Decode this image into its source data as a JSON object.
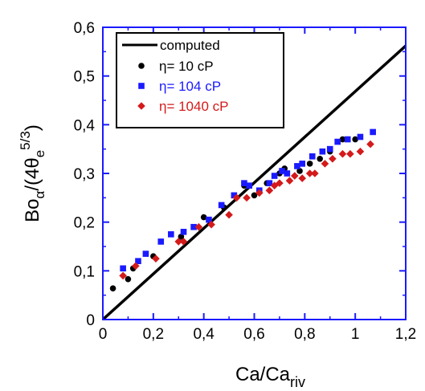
{
  "chart_data": {
    "type": "scatter",
    "xlim": [
      0,
      1.2
    ],
    "ylim": [
      0,
      0.6
    ],
    "x_ticks": [
      "0",
      "0,2",
      "0,4",
      "0,6",
      "0,8",
      "1",
      "1,2"
    ],
    "y_ticks": [
      "0",
      "0,1",
      "0,2",
      "0,3",
      "0,4",
      "0,5",
      "0,6"
    ],
    "xlabel": {
      "main": "Ca/Ca",
      "sub": "riv"
    },
    "ylabel": {
      "p1": "Bo",
      "p1sub": "α",
      "p2": "/(4θ",
      "p2sub": "e",
      "p2sup": "5/3",
      "p3": ")"
    },
    "frame_color": "#1a1aff",
    "legend_position": "top-left",
    "computed_line": {
      "name": "computed",
      "color": "#000000",
      "x": [
        0,
        1.2
      ],
      "y": [
        0,
        0.562
      ]
    },
    "series": [
      {
        "name": "η= 10 cP",
        "marker": "circle",
        "color": "#000000",
        "label_color": "#000000",
        "points": [
          [
            0.04,
            0.064
          ],
          [
            0.1,
            0.083
          ],
          [
            0.12,
            0.105
          ],
          [
            0.2,
            0.13
          ],
          [
            0.31,
            0.17
          ],
          [
            0.4,
            0.21
          ],
          [
            0.48,
            0.23
          ],
          [
            0.56,
            0.275
          ],
          [
            0.6,
            0.255
          ],
          [
            0.65,
            0.28
          ],
          [
            0.7,
            0.3
          ],
          [
            0.72,
            0.31
          ],
          [
            0.78,
            0.305
          ],
          [
            0.82,
            0.32
          ],
          [
            0.86,
            0.33
          ],
          [
            0.9,
            0.345
          ],
          [
            0.95,
            0.37
          ],
          [
            1.0,
            0.37
          ]
        ]
      },
      {
        "name": "η= 104 cP",
        "marker": "square",
        "color": "#1a1aff",
        "label_color": "#1a1aff",
        "points": [
          [
            0.08,
            0.105
          ],
          [
            0.14,
            0.12
          ],
          [
            0.17,
            0.135
          ],
          [
            0.23,
            0.16
          ],
          [
            0.27,
            0.175
          ],
          [
            0.32,
            0.18
          ],
          [
            0.36,
            0.19
          ],
          [
            0.42,
            0.205
          ],
          [
            0.47,
            0.235
          ],
          [
            0.52,
            0.255
          ],
          [
            0.56,
            0.28
          ],
          [
            0.58,
            0.275
          ],
          [
            0.62,
            0.265
          ],
          [
            0.66,
            0.28
          ],
          [
            0.68,
            0.295
          ],
          [
            0.71,
            0.305
          ],
          [
            0.73,
            0.3
          ],
          [
            0.77,
            0.315
          ],
          [
            0.79,
            0.32
          ],
          [
            0.83,
            0.335
          ],
          [
            0.87,
            0.345
          ],
          [
            0.9,
            0.35
          ],
          [
            0.93,
            0.365
          ],
          [
            0.97,
            0.37
          ],
          [
            1.02,
            0.375
          ],
          [
            1.07,
            0.385
          ]
        ]
      },
      {
        "name": "η= 1040 cP",
        "marker": "diamond",
        "color": "#d41a1a",
        "label_color": "#d41a1a",
        "points": [
          [
            0.08,
            0.09
          ],
          [
            0.13,
            0.11
          ],
          [
            0.21,
            0.125
          ],
          [
            0.3,
            0.16
          ],
          [
            0.32,
            0.16
          ],
          [
            0.38,
            0.19
          ],
          [
            0.43,
            0.195
          ],
          [
            0.5,
            0.215
          ],
          [
            0.53,
            0.25
          ],
          [
            0.57,
            0.25
          ],
          [
            0.62,
            0.26
          ],
          [
            0.66,
            0.265
          ],
          [
            0.68,
            0.275
          ],
          [
            0.7,
            0.28
          ],
          [
            0.74,
            0.285
          ],
          [
            0.76,
            0.295
          ],
          [
            0.79,
            0.29
          ],
          [
            0.82,
            0.3
          ],
          [
            0.84,
            0.3
          ],
          [
            0.88,
            0.32
          ],
          [
            0.91,
            0.33
          ],
          [
            0.95,
            0.34
          ],
          [
            0.98,
            0.34
          ],
          [
            1.02,
            0.345
          ],
          [
            1.06,
            0.36
          ]
        ]
      }
    ]
  }
}
